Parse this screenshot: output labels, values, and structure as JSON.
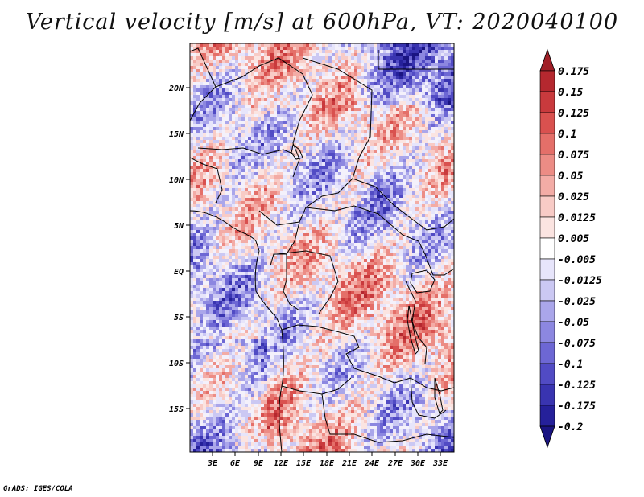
{
  "title": "Vertical velocity [m/s] at 600hPa, VT: 2020040100",
  "credit": "GrADS: IGES/COLA",
  "map": {
    "variable": "Vertical velocity",
    "units": "m/s",
    "level": "600hPa",
    "valid_time": "2020040100",
    "lat_labels": [
      "20N",
      "15N",
      "10N",
      "5N",
      "EQ",
      "5S",
      "10S",
      "15S"
    ],
    "lon_labels": [
      "3E",
      "6E",
      "9E",
      "12E",
      "15E",
      "18E",
      "21E",
      "24E",
      "27E",
      "30E",
      "33E"
    ]
  },
  "colorbar": {
    "labels": [
      "0.175",
      "0.15",
      "0.125",
      "0.1",
      "0.075",
      "0.05",
      "0.025",
      "0.0125",
      "0.005",
      "-0.005",
      "-0.0125",
      "-0.025",
      "-0.05",
      "-0.075",
      "-0.1",
      "-0.125",
      "-0.175",
      "-0.2"
    ],
    "colors": [
      "#a01f27",
      "#b5282f",
      "#c93a3d",
      "#d9514f",
      "#e46f69",
      "#ec8c85",
      "#f3aca6",
      "#f8cbc6",
      "#fbe4e1",
      "#ffffff",
      "#e7e5fb",
      "#cbc8f3",
      "#aaa6ea",
      "#8c87e0",
      "#6d67d4",
      "#514bc4",
      "#3934b0",
      "#25209a",
      "#1a1482"
    ]
  }
}
